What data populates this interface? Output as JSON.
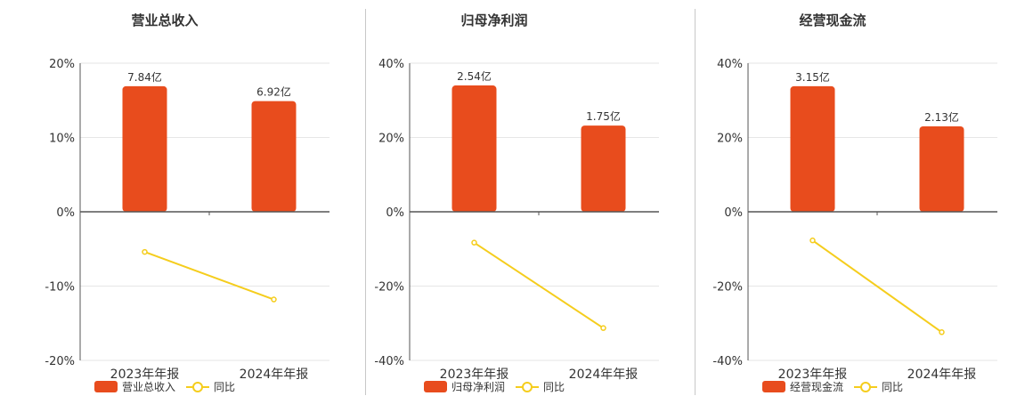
{
  "colors": {
    "bar": "#e84c1d",
    "line": "#f5cd1d",
    "grid": "#e6e6e6",
    "axis": "#555555",
    "text": "#333333"
  },
  "chart_data": [
    {
      "type": "bar",
      "title": "营业总收入",
      "categories": [
        "2023年年报",
        "2024年年报"
      ],
      "bar_labels": [
        "7.84亿",
        "6.92亿"
      ],
      "series": [
        {
          "name": "营业总收入",
          "type": "bar",
          "values": [
            16.9,
            14.9
          ]
        },
        {
          "name": "同比",
          "type": "line",
          "values": [
            -5.4,
            -11.8
          ]
        }
      ],
      "yticks": [
        "20%",
        "10%",
        "0%",
        "-10%",
        "-20%"
      ],
      "ylim": [
        -20,
        20
      ],
      "grid": true,
      "legend": "bottom"
    },
    {
      "type": "bar",
      "title": "归母净利润",
      "categories": [
        "2023年年报",
        "2024年年报"
      ],
      "bar_labels": [
        "2.54亿",
        "1.75亿"
      ],
      "series": [
        {
          "name": "归母净利润",
          "type": "bar",
          "values": [
            34.0,
            23.2
          ]
        },
        {
          "name": "同比",
          "type": "line",
          "values": [
            -8.3,
            -31.3
          ]
        }
      ],
      "yticks": [
        "40%",
        "20%",
        "0%",
        "-20%",
        "-40%"
      ],
      "ylim": [
        -40,
        40
      ],
      "grid": true,
      "legend": "bottom"
    },
    {
      "type": "bar",
      "title": "经营现金流",
      "categories": [
        "2023年年报",
        "2024年年报"
      ],
      "bar_labels": [
        "3.15亿",
        "2.13亿"
      ],
      "series": [
        {
          "name": "经营现金流",
          "type": "bar",
          "values": [
            33.8,
            23.0
          ]
        },
        {
          "name": "同比",
          "type": "line",
          "values": [
            -7.7,
            -32.4
          ]
        }
      ],
      "yticks": [
        "40%",
        "20%",
        "0%",
        "-20%",
        "-40%"
      ],
      "ylim": [
        -40,
        40
      ],
      "grid": true,
      "legend": "bottom"
    }
  ]
}
